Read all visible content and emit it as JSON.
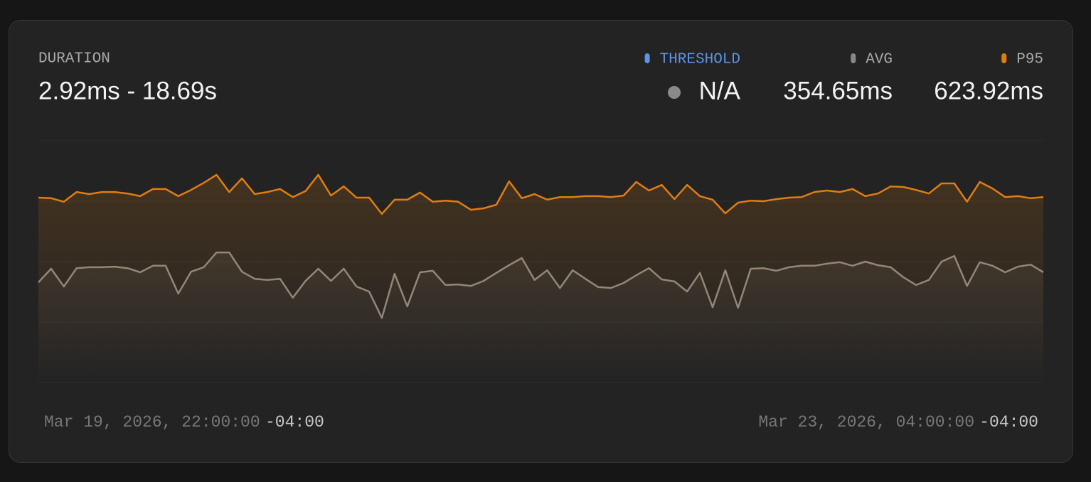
{
  "chart_data": {
    "type": "line",
    "title": "DURATION",
    "subtitle": "2.92ms - 18.69s",
    "threshold": {
      "name": "THRESHOLD",
      "color": "#5c93e6",
      "stat": "N/A"
    },
    "timezone": "-04:00",
    "categories": [
      "Mar 19, 2026, 22:00:00",
      null,
      null,
      null,
      null,
      null,
      null,
      null,
      null,
      null,
      null,
      null,
      null,
      null,
      null,
      null,
      null,
      null,
      null,
      null,
      null,
      null,
      null,
      null,
      null,
      null,
      null,
      null,
      null,
      null,
      null,
      null,
      null,
      null,
      null,
      null,
      null,
      null,
      null,
      null,
      null,
      null,
      null,
      null,
      null,
      null,
      null,
      null,
      null,
      null,
      null,
      null,
      null,
      null,
      null,
      null,
      null,
      null,
      null,
      null,
      null,
      null,
      null,
      null,
      null,
      null,
      null,
      null,
      null,
      null,
      null,
      null,
      null,
      null,
      null,
      null,
      null,
      null,
      null,
      "Mar 23, 2026, 04:00:00"
    ],
    "ylim": [
      0,
      816
    ],
    "grid": true,
    "series": [
      {
        "name": "AVG",
        "color": "#8c8782",
        "stat": "354.65ms",
        "values": [
          338,
          384,
          324,
          386,
          389,
          389,
          391,
          386,
          372,
          394,
          394,
          300,
          374,
          389,
          439,
          439,
          374,
          350,
          346,
          350,
          286,
          343,
          384,
          343,
          384,
          324,
          307,
          218,
          367,
          257,
          372,
          377,
          329,
          331,
          326,
          343,
          370,
          396,
          420,
          346,
          379,
          319,
          379,
          350,
          322,
          319,
          336,
          362,
          386,
          348,
          341,
          307,
          370,
          254,
          379,
          252,
          384,
          386,
          377,
          389,
          394,
          394,
          401,
          406,
          394,
          408,
          396,
          389,
          355,
          329,
          346,
          408,
          427,
          326,
          406,
          394,
          372,
          391,
          398,
          372
        ]
      },
      {
        "name": "P95",
        "color": "#e07d10",
        "stat": "623.92ms",
        "values": [
          624,
          622,
          610,
          643,
          636,
          643,
          643,
          638,
          629,
          653,
          653,
          629,
          650,
          674,
          701,
          643,
          689,
          636,
          643,
          653,
          626,
          646,
          701,
          631,
          662,
          624,
          624,
          569,
          617,
          617,
          641,
          610,
          614,
          610,
          583,
          588,
          600,
          679,
          622,
          636,
          617,
          626,
          626,
          629,
          629,
          626,
          631,
          677,
          648,
          667,
          619,
          667,
          629,
          617,
          571,
          607,
          614,
          612,
          619,
          624,
          626,
          643,
          648,
          643,
          653,
          629,
          638,
          662,
          660,
          650,
          638,
          672,
          672,
          610,
          677,
          655,
          626,
          629,
          622,
          626
        ]
      }
    ]
  }
}
